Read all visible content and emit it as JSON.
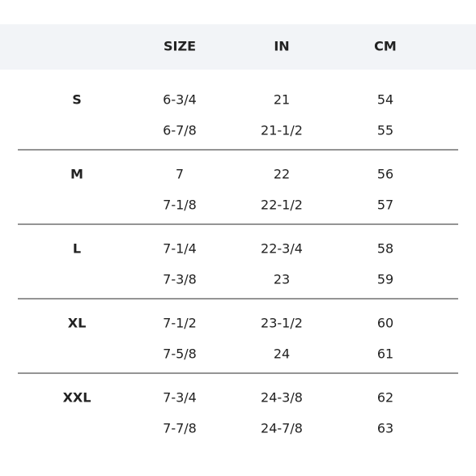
{
  "table": {
    "headers": [
      "SIZE",
      "IN",
      "CM"
    ],
    "groups": [
      {
        "label": "S",
        "rows": [
          [
            "6-3/4",
            "21",
            "54"
          ],
          [
            "6-7/8",
            "21-1/2",
            "55"
          ]
        ]
      },
      {
        "label": "M",
        "rows": [
          [
            "7",
            "22",
            "56"
          ],
          [
            "7-1/8",
            "22-1/2",
            "57"
          ]
        ]
      },
      {
        "label": "L",
        "rows": [
          [
            "7-1/4",
            "22-3/4",
            "58"
          ],
          [
            "7-3/8",
            "23",
            "59"
          ]
        ]
      },
      {
        "label": "XL",
        "rows": [
          [
            "7-1/2",
            "23-1/2",
            "60"
          ],
          [
            "7-5/8",
            "24",
            "61"
          ]
        ]
      },
      {
        "label": "XXL",
        "rows": [
          [
            "7-3/4",
            "24-3/8",
            "62"
          ],
          [
            "7-7/8",
            "24-7/8",
            "63"
          ]
        ]
      }
    ]
  }
}
